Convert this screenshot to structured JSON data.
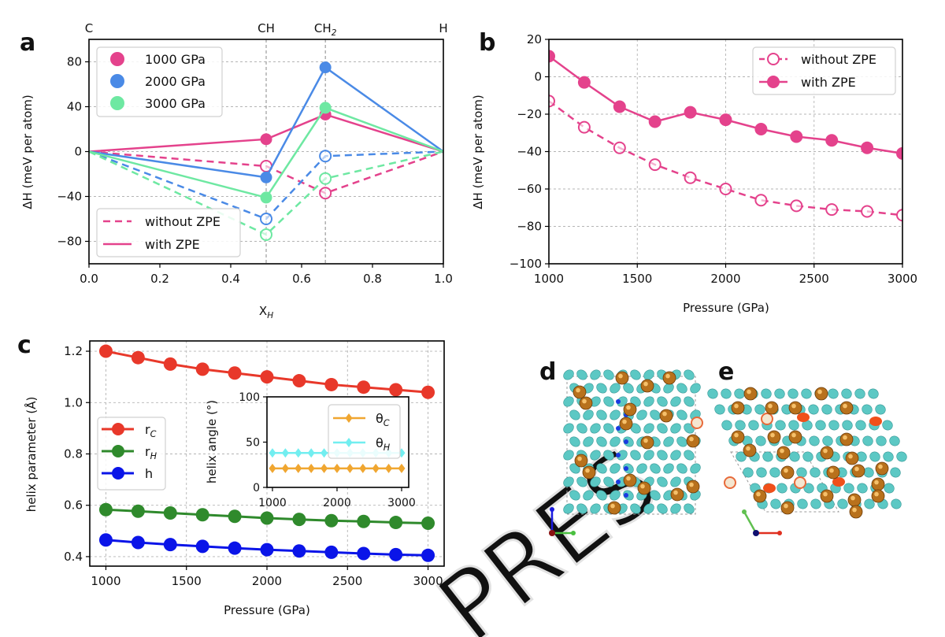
{
  "figure": {
    "watermark": "PRES"
  },
  "chart_data": [
    {
      "panel": "a",
      "type": "line",
      "xlabel": {
        "text": "X",
        "sub": "H"
      },
      "ylabel": "ΔH (meV per atom)",
      "xlim": [
        0,
        1
      ],
      "ylim": [
        -100,
        100
      ],
      "xticks": [
        0,
        0.2,
        0.4,
        0.6,
        0.8,
        1.0
      ],
      "xtick_labels": [
        "0.0",
        "0.2",
        "0.4",
        "0.6",
        "0.8",
        "1.0"
      ],
      "yticks": [
        -80,
        -40,
        0,
        40,
        80
      ],
      "ytick_labels": [
        "−80",
        "−40",
        "0",
        "40",
        "80"
      ],
      "grid": "horizontal + composition lines",
      "top_labels": [
        {
          "x": 0,
          "text": "C",
          "sub": ""
        },
        {
          "x": 0.5,
          "text": "CH",
          "sub": ""
        },
        {
          "x": 0.667,
          "text": "CH",
          "sub": "2"
        },
        {
          "x": 1,
          "text": "H",
          "sub": ""
        }
      ],
      "vlines": [
        0.5,
        0.667
      ],
      "x": [
        0,
        0.5,
        0.667,
        1
      ],
      "series": [
        {
          "name": "1000 GPa",
          "color": "#e4428c",
          "with_zpe": [
            0,
            11,
            33,
            0
          ],
          "without_zpe": [
            0,
            -13,
            -37,
            0
          ]
        },
        {
          "name": "2000 GPa",
          "color": "#4a8ae6",
          "with_zpe": [
            0,
            -23,
            75,
            0
          ],
          "without_zpe": [
            0,
            -60,
            -4,
            0
          ]
        },
        {
          "name": "3000 GPa",
          "color": "#6ee8a2",
          "with_zpe": [
            0,
            -41,
            39,
            0
          ],
          "without_zpe": [
            0,
            -74,
            -24,
            0
          ]
        }
      ],
      "style_legend": [
        "without ZPE",
        "with ZPE"
      ],
      "legend_placement": [
        "upper-left",
        "lower-left"
      ]
    },
    {
      "panel": "b",
      "type": "line",
      "xlabel": {
        "text": "Pressure (GPa)",
        "sub": ""
      },
      "ylabel": "ΔH (meV per atom)",
      "xlim": [
        1000,
        3000
      ],
      "ylim": [
        -100,
        20
      ],
      "xticks": [
        1000,
        1500,
        2000,
        2500,
        3000
      ],
      "xtick_labels": [
        "1000",
        "1500",
        "2000",
        "2500",
        "3000"
      ],
      "yticks": [
        -100,
        -80,
        -60,
        -40,
        -20,
        0,
        20
      ],
      "ytick_labels": [
        "−100",
        "−80",
        "−60",
        "−40",
        "−20",
        "0",
        "20"
      ],
      "grid": true,
      "x": [
        1000,
        1200,
        1400,
        1600,
        1800,
        2000,
        2200,
        2400,
        2600,
        2800,
        3000
      ],
      "series": [
        {
          "name": "without ZPE",
          "color": "#e4428c",
          "marker": "open",
          "dashed": true,
          "values": [
            -13,
            -27,
            -38,
            -47,
            -54,
            -60,
            -66,
            -69,
            -71,
            -72,
            -74
          ]
        },
        {
          "name": "with ZPE",
          "color": "#e4428c",
          "marker": "filled",
          "dashed": false,
          "values": [
            11,
            -3,
            -16,
            -24,
            -19,
            -23,
            -28,
            -32,
            -34,
            -38,
            -41
          ]
        }
      ],
      "legend_placement": "upper-right"
    },
    {
      "panel": "c",
      "type": "line",
      "xlabel": {
        "text": "Pressure (GPa)",
        "sub": ""
      },
      "ylabel": "helix parameter (Å)",
      "xlim": [
        900,
        3100
      ],
      "ylim": [
        0.363,
        1.24
      ],
      "xticks": [
        1000,
        1500,
        2000,
        2500,
        3000
      ],
      "xtick_labels": [
        "1000",
        "1500",
        "2000",
        "2500",
        "3000"
      ],
      "yticks": [
        0.4,
        0.6,
        0.8,
        1.0,
        1.2
      ],
      "ytick_labels": [
        "0.4",
        "0.6",
        "0.8",
        "1.0",
        "1.2"
      ],
      "grid": true,
      "x": [
        1000,
        1200,
        1400,
        1600,
        1800,
        2000,
        2200,
        2400,
        2600,
        2800,
        3000
      ],
      "series": [
        {
          "name": {
            "text": "r",
            "sub": "C"
          },
          "color": "#e8382a",
          "values": [
            1.2,
            1.175,
            1.15,
            1.13,
            1.115,
            1.1,
            1.085,
            1.07,
            1.06,
            1.05,
            1.04
          ]
        },
        {
          "name": {
            "text": "r",
            "sub": "H"
          },
          "color": "#2f8a2c",
          "values": [
            0.583,
            0.577,
            0.57,
            0.563,
            0.557,
            0.55,
            0.545,
            0.54,
            0.537,
            0.533,
            0.53
          ]
        },
        {
          "name": {
            "text": "h",
            "sub": ""
          },
          "color": "#0a14e8",
          "values": [
            0.465,
            0.455,
            0.447,
            0.44,
            0.433,
            0.427,
            0.422,
            0.417,
            0.412,
            0.408,
            0.405
          ]
        }
      ],
      "legend_placement": "center-left",
      "inset": {
        "type": "line",
        "ylabel": "helix angle (°)",
        "xlim": [
          915,
          3110
        ],
        "ylim": [
          0,
          100
        ],
        "xticks": [
          1000,
          2000,
          3000
        ],
        "xtick_labels": [
          "1000",
          "2000",
          "3000"
        ],
        "yticks": [
          0,
          50,
          100
        ],
        "ytick_labels": [
          "0",
          "50",
          "100"
        ],
        "x": [
          1000,
          1200,
          1400,
          1600,
          1800,
          2000,
          2200,
          2400,
          2600,
          2800,
          3000
        ],
        "series": [
          {
            "name": {
              "text": "θ",
              "sub": "C"
            },
            "color": "#f0a630",
            "values": [
              21,
              21,
              21,
              21,
              21,
              21,
              21,
              21,
              21,
              21,
              21
            ]
          },
          {
            "name": {
              "text": "θ",
              "sub": "H"
            },
            "color": "#72eef0",
            "values": [
              38,
              38,
              38,
              38,
              38,
              38,
              38,
              38,
              38,
              38,
              38
            ]
          }
        ],
        "legend_placement": "upper-right"
      }
    }
  ],
  "structures": [
    {
      "label": "d",
      "atom_color": "#b8711c",
      "density_color": "#5cc8c4"
    },
    {
      "label": "e",
      "atom_color": "#b8711c",
      "density_color": "#5cc8c4"
    }
  ]
}
